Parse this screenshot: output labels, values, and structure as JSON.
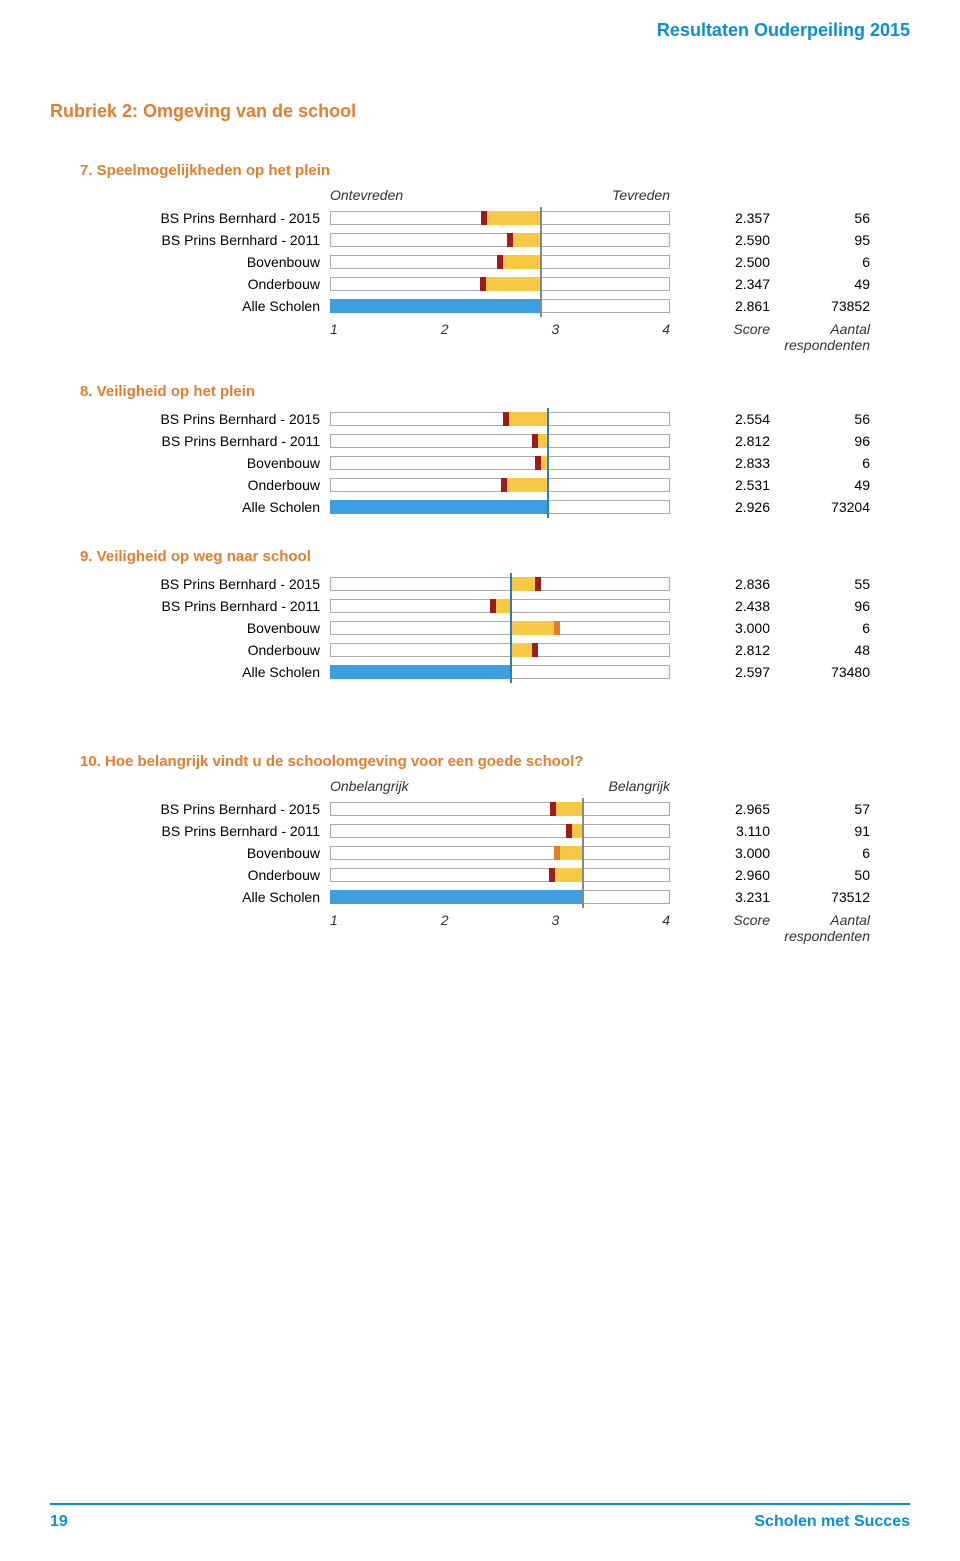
{
  "colors": {
    "accent_blue": "#0a8fd6",
    "accent_orange": "#e47d2e",
    "bar_yellow": "#f7c842",
    "bar_blue": "#3ca0e0",
    "marker_red": "#9e1b1b",
    "marker_orange": "#e47d2e",
    "vline_gray": "#888888",
    "vline_blue": "#2d7cc0"
  },
  "header": {
    "title": "Resultaten Ouderpeiling 2015"
  },
  "rubriek": {
    "title": "Rubriek 2: Omgeving van de school"
  },
  "scale": {
    "left_label": "Ontevreden",
    "right_label": "Tevreden",
    "left_label_alt": "Onbelangrijk",
    "right_label_alt": "Belangrijk",
    "min": 1,
    "max": 4,
    "ticks": [
      "1",
      "2",
      "3",
      "4"
    ],
    "score_header": "Score",
    "count_header": "Aantal respondenten"
  },
  "questions": [
    {
      "number": "7.",
      "title": "Speelmogelijkheden op het plein",
      "show_top_labels": true,
      "show_axis": true,
      "top_labels": "normal",
      "ref_vline": 2.861,
      "vline_style": "gray",
      "rows": [
        {
          "label": "BS Prins Bernhard - 2015",
          "score": "2.357",
          "count": "56",
          "bar_from": 2.357,
          "bar_to": 2.861,
          "fill": "yellow",
          "marker": 2.357,
          "marker_color": "red"
        },
        {
          "label": "BS Prins Bernhard - 2011",
          "score": "2.590",
          "count": "95",
          "bar_from": 2.59,
          "bar_to": 2.861,
          "fill": "yellow",
          "marker": 2.59,
          "marker_color": "red"
        },
        {
          "label": "Bovenbouw",
          "score": "2.500",
          "count": "6",
          "bar_from": 2.5,
          "bar_to": 2.861,
          "fill": "yellow",
          "marker": 2.5,
          "marker_color": "red"
        },
        {
          "label": "Onderbouw",
          "score": "2.347",
          "count": "49",
          "bar_from": 2.347,
          "bar_to": 2.861,
          "fill": "yellow",
          "marker": 2.347,
          "marker_color": "red"
        },
        {
          "label": "Alle Scholen",
          "score": "2.861",
          "count": "73852",
          "bar_from": 1,
          "bar_to": 2.861,
          "fill": "blue",
          "marker": null
        }
      ]
    },
    {
      "number": "8.",
      "title": "Veiligheid op het plein",
      "show_top_labels": false,
      "show_axis": false,
      "ref_vline": 2.926,
      "vline_style": "blue",
      "rows": [
        {
          "label": "BS Prins Bernhard - 2015",
          "score": "2.554",
          "count": "56",
          "bar_from": 2.554,
          "bar_to": 2.926,
          "fill": "yellow",
          "marker": 2.554,
          "marker_color": "red"
        },
        {
          "label": "BS Prins Bernhard - 2011",
          "score": "2.812",
          "count": "96",
          "bar_from": 2.812,
          "bar_to": 2.926,
          "fill": "yellow",
          "marker": 2.812,
          "marker_color": "red"
        },
        {
          "label": "Bovenbouw",
          "score": "2.833",
          "count": "6",
          "bar_from": 2.833,
          "bar_to": 2.926,
          "fill": "yellow",
          "marker": 2.833,
          "marker_color": "red"
        },
        {
          "label": "Onderbouw",
          "score": "2.531",
          "count": "49",
          "bar_from": 2.531,
          "bar_to": 2.926,
          "fill": "yellow",
          "marker": 2.531,
          "marker_color": "red"
        },
        {
          "label": "Alle Scholen",
          "score": "2.926",
          "count": "73204",
          "bar_from": 1,
          "bar_to": 2.926,
          "fill": "blue",
          "marker": null
        }
      ]
    },
    {
      "number": "9.",
      "title": "Veiligheid op weg naar school",
      "show_top_labels": false,
      "show_axis": false,
      "ref_vline": 2.597,
      "vline_style": "blue",
      "rows": [
        {
          "label": "BS Prins Bernhard - 2015",
          "score": "2.836",
          "count": "55",
          "bar_from": 2.597,
          "bar_to": 2.836,
          "fill": "yellow",
          "marker": 2.836,
          "marker_color": "red"
        },
        {
          "label": "BS Prins Bernhard - 2011",
          "score": "2.438",
          "count": "96",
          "bar_from": 2.438,
          "bar_to": 2.597,
          "fill": "yellow",
          "marker": 2.438,
          "marker_color": "red"
        },
        {
          "label": "Bovenbouw",
          "score": "3.000",
          "count": "6",
          "bar_from": 2.597,
          "bar_to": 3.0,
          "fill": "yellow",
          "marker": 3.0,
          "marker_color": "orange"
        },
        {
          "label": "Onderbouw",
          "score": "2.812",
          "count": "48",
          "bar_from": 2.597,
          "bar_to": 2.812,
          "fill": "yellow",
          "marker": 2.812,
          "marker_color": "red"
        },
        {
          "label": "Alle Scholen",
          "score": "2.597",
          "count": "73480",
          "bar_from": 1,
          "bar_to": 2.597,
          "fill": "blue",
          "marker": null
        }
      ]
    },
    {
      "number": "10.",
      "title": "Hoe belangrijk vindt u de schoolomgeving voor een goede school?",
      "show_top_labels": true,
      "show_axis": true,
      "top_labels": "alt",
      "ref_vline": 3.231,
      "vline_style": "gray",
      "rows": [
        {
          "label": "BS Prins Bernhard - 2015",
          "score": "2.965",
          "count": "57",
          "bar_from": 2.965,
          "bar_to": 3.231,
          "fill": "yellow",
          "marker": 2.965,
          "marker_color": "red"
        },
        {
          "label": "BS Prins Bernhard - 2011",
          "score": "3.110",
          "count": "91",
          "bar_from": 3.11,
          "bar_to": 3.231,
          "fill": "yellow",
          "marker": 3.11,
          "marker_color": "red"
        },
        {
          "label": "Bovenbouw",
          "score": "3.000",
          "count": "6",
          "bar_from": 3.0,
          "bar_to": 3.231,
          "fill": "yellow",
          "marker": 3.0,
          "marker_color": "orange"
        },
        {
          "label": "Onderbouw",
          "score": "2.960",
          "count": "50",
          "bar_from": 2.96,
          "bar_to": 3.231,
          "fill": "yellow",
          "marker": 2.96,
          "marker_color": "red"
        },
        {
          "label": "Alle Scholen",
          "score": "3.231",
          "count": "73512",
          "bar_from": 1,
          "bar_to": 3.231,
          "fill": "blue",
          "marker": null
        }
      ]
    }
  ],
  "footer": {
    "page": "19",
    "brand": "Scholen met Succes"
  }
}
